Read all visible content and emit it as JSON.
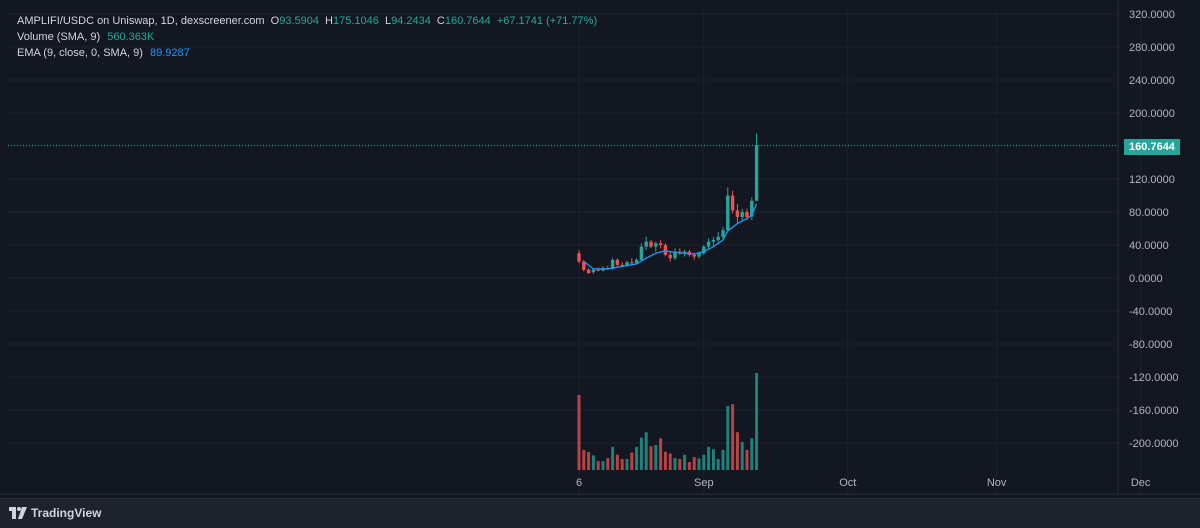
{
  "header": {
    "pair": "AMPLIFI/USDC on Uniswap, 1D, dexscreener.com",
    "o_label": "O",
    "o_value": "93.5904",
    "h_label": "H",
    "h_value": "175.1046",
    "l_label": "L",
    "l_value": "94.2434",
    "c_label": "C",
    "c_value": "160.7644",
    "change": "+67.1741 (+71.77%)",
    "volume_label": "Volume (SMA, 9)",
    "volume_value": "560.363K",
    "ema_label": "EMA (9, close, 0, SMA, 9)",
    "ema_value": "89.9287"
  },
  "last_price": "160.7644",
  "footer": {
    "brand": "TradingView"
  },
  "colors": {
    "up": "#26a69a",
    "down": "#ef5350",
    "ema": "#2196f3",
    "bg": "#131722"
  },
  "chart_data": {
    "type": "candlestick",
    "y_ticks": [
      "320.0000",
      "280.0000",
      "240.0000",
      "200.0000",
      "160.0000",
      "120.0000",
      "80.0000",
      "40.0000",
      "0.0000",
      "-40.0000",
      "-80.0000",
      "-120.0000",
      "-160.0000",
      "-200.0000"
    ],
    "ylim": [
      -240,
      320
    ],
    "x_ticks": [
      {
        "label": "6",
        "day": 0
      },
      {
        "label": "Sep",
        "day": 26
      },
      {
        "label": "Oct",
        "day": 56
      },
      {
        "label": "Nov",
        "day": 87
      },
      {
        "label": "Dec",
        "day": 117
      }
    ],
    "candles": [
      {
        "day": 0,
        "o": 30,
        "h": 34,
        "l": 18,
        "c": 20
      },
      {
        "day": 1,
        "o": 20,
        "h": 22,
        "l": 8,
        "c": 10
      },
      {
        "day": 2,
        "o": 10,
        "h": 12,
        "l": 5,
        "c": 6
      },
      {
        "day": 3,
        "o": 7,
        "h": 12,
        "l": 5,
        "c": 10
      },
      {
        "day": 4,
        "o": 10,
        "h": 13,
        "l": 8,
        "c": 9
      },
      {
        "day": 5,
        "o": 9,
        "h": 14,
        "l": 8,
        "c": 12
      },
      {
        "day": 6,
        "o": 12,
        "h": 15,
        "l": 10,
        "c": 11
      },
      {
        "day": 7,
        "o": 11,
        "h": 24,
        "l": 10,
        "c": 22
      },
      {
        "day": 8,
        "o": 22,
        "h": 24,
        "l": 14,
        "c": 16
      },
      {
        "day": 9,
        "o": 16,
        "h": 19,
        "l": 13,
        "c": 15
      },
      {
        "day": 10,
        "o": 15,
        "h": 21,
        "l": 14,
        "c": 19
      },
      {
        "day": 11,
        "o": 19,
        "h": 24,
        "l": 16,
        "c": 18
      },
      {
        "day": 12,
        "o": 18,
        "h": 24,
        "l": 17,
        "c": 22
      },
      {
        "day": 13,
        "o": 22,
        "h": 42,
        "l": 20,
        "c": 38
      },
      {
        "day": 14,
        "o": 38,
        "h": 50,
        "l": 34,
        "c": 44
      },
      {
        "day": 15,
        "o": 44,
        "h": 46,
        "l": 36,
        "c": 38
      },
      {
        "day": 16,
        "o": 38,
        "h": 44,
        "l": 32,
        "c": 42
      },
      {
        "day": 17,
        "o": 42,
        "h": 46,
        "l": 36,
        "c": 40
      },
      {
        "day": 18,
        "o": 40,
        "h": 42,
        "l": 26,
        "c": 28
      },
      {
        "day": 19,
        "o": 28,
        "h": 32,
        "l": 20,
        "c": 24
      },
      {
        "day": 20,
        "o": 24,
        "h": 36,
        "l": 22,
        "c": 32
      },
      {
        "day": 21,
        "o": 32,
        "h": 36,
        "l": 28,
        "c": 30
      },
      {
        "day": 22,
        "o": 30,
        "h": 34,
        "l": 26,
        "c": 32
      },
      {
        "day": 23,
        "o": 32,
        "h": 34,
        "l": 26,
        "c": 28
      },
      {
        "day": 24,
        "o": 28,
        "h": 31,
        "l": 22,
        "c": 26
      },
      {
        "day": 25,
        "o": 26,
        "h": 32,
        "l": 24,
        "c": 30
      },
      {
        "day": 26,
        "o": 30,
        "h": 40,
        "l": 28,
        "c": 38
      },
      {
        "day": 27,
        "o": 38,
        "h": 48,
        "l": 34,
        "c": 44
      },
      {
        "day": 28,
        "o": 44,
        "h": 50,
        "l": 38,
        "c": 46
      },
      {
        "day": 29,
        "o": 46,
        "h": 56,
        "l": 42,
        "c": 50
      },
      {
        "day": 30,
        "o": 50,
        "h": 62,
        "l": 46,
        "c": 58
      },
      {
        "day": 31,
        "o": 58,
        "h": 110,
        "l": 55,
        "c": 100
      },
      {
        "day": 32,
        "o": 100,
        "h": 106,
        "l": 78,
        "c": 82
      },
      {
        "day": 33,
        "o": 82,
        "h": 90,
        "l": 66,
        "c": 74
      },
      {
        "day": 34,
        "o": 74,
        "h": 84,
        "l": 68,
        "c": 80
      },
      {
        "day": 35,
        "o": 80,
        "h": 84,
        "l": 70,
        "c": 74
      },
      {
        "day": 36,
        "o": 74.5,
        "h": 98,
        "l": 70,
        "c": 93.59
      },
      {
        "day": 37,
        "o": 93.5904,
        "h": 175.1046,
        "l": 94.2434,
        "c": 160.7644
      }
    ],
    "ema": [
      {
        "day": 1,
        "v": 20
      },
      {
        "day": 3,
        "v": 11
      },
      {
        "day": 6,
        "v": 11
      },
      {
        "day": 9,
        "v": 14
      },
      {
        "day": 12,
        "v": 17
      },
      {
        "day": 14,
        "v": 24
      },
      {
        "day": 16,
        "v": 30
      },
      {
        "day": 18,
        "v": 33
      },
      {
        "day": 20,
        "v": 31
      },
      {
        "day": 22,
        "v": 30
      },
      {
        "day": 24,
        "v": 29
      },
      {
        "day": 26,
        "v": 32
      },
      {
        "day": 28,
        "v": 38
      },
      {
        "day": 30,
        "v": 46
      },
      {
        "day": 31,
        "v": 57
      },
      {
        "day": 33,
        "v": 66
      },
      {
        "day": 35,
        "v": 72
      },
      {
        "day": 36,
        "v": 76
      },
      {
        "day": 37,
        "v": 90
      }
    ],
    "volume_k": [
      1230,
      330,
      295,
      240,
      145,
      145,
      195,
      380,
      250,
      180,
      180,
      285,
      380,
      530,
      620,
      390,
      410,
      520,
      300,
      270,
      195,
      180,
      250,
      130,
      210,
      190,
      250,
      380,
      340,
      180,
      330,
      1050,
      1080,
      620,
      460,
      330,
      520,
      1590
    ]
  }
}
